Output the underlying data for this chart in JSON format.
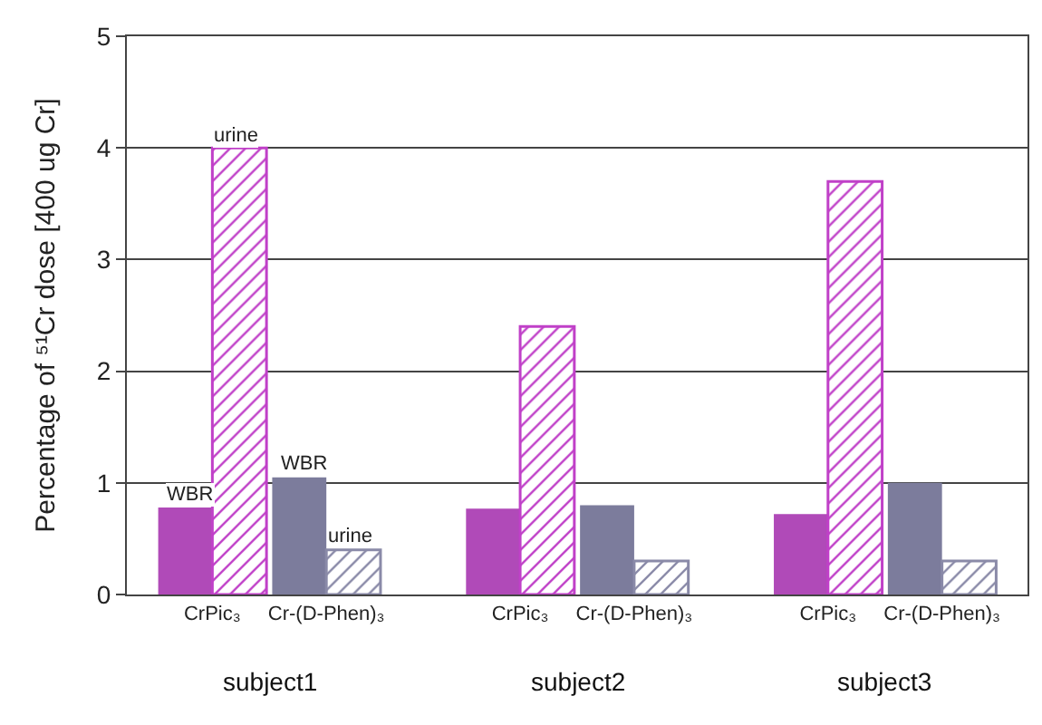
{
  "chart_data": {
    "type": "bar",
    "ylabel": "Percentage of ⁵¹Cr dose [400 ug Cr]",
    "categories": [
      "CrPic₃",
      "Cr-(D-Phen)₃",
      "CrPic₃",
      "Cr-(D-Phen)₃",
      "CrPic₃",
      "Cr-(D-Phen)₃"
    ],
    "series": [
      {
        "name": "WBR",
        "colors": [
          "#b04ab8",
          "#7c7c9c",
          "#b04ab8",
          "#7c7c9c",
          "#b04ab8",
          "#7c7c9c"
        ],
        "values": [
          0.78,
          1.05,
          0.77,
          0.8,
          0.72,
          1.0
        ]
      },
      {
        "name": "urine",
        "colors": [
          "#c040c8",
          "#8a8aa8",
          "#c040c8",
          "#8a8aa8",
          "#c040c8",
          "#8a8aa8"
        ],
        "values": [
          4.0,
          0.4,
          2.4,
          0.3,
          3.7,
          0.3
        ]
      }
    ],
    "annotations": [
      "subject1",
      "subject2",
      "subject3"
    ],
    "ylim": [
      0,
      5
    ],
    "yticks": [
      0,
      1,
      2,
      3,
      4,
      5
    ],
    "grid": "y",
    "legend": false
  }
}
